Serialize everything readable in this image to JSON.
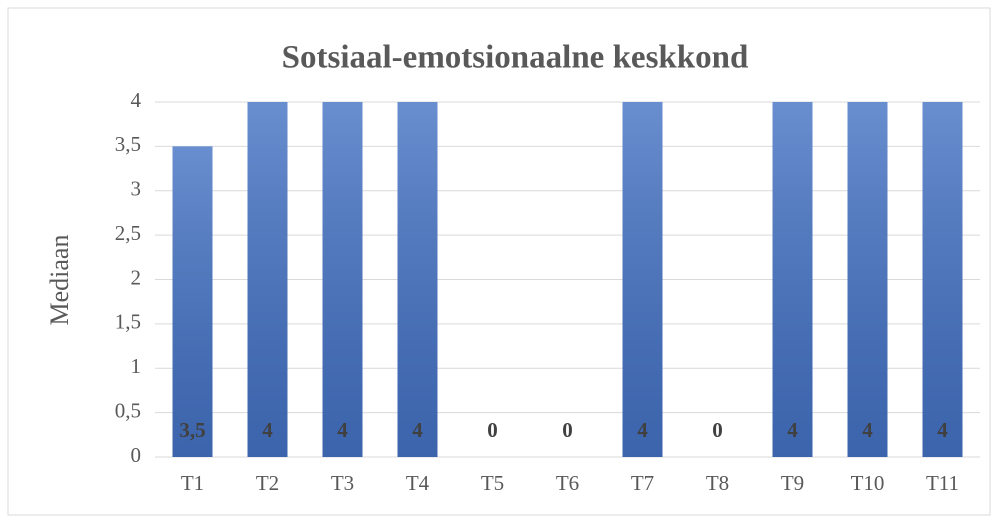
{
  "chart_data": {
    "type": "bar",
    "title": "Sotsiaal-emotsionaalne keskkond",
    "y_label": "Mediaan",
    "categories": [
      "T1",
      "T2",
      "T3",
      "T4",
      "T5",
      "T6",
      "T7",
      "T8",
      "T9",
      "T10",
      "T11"
    ],
    "values": [
      3.5,
      4,
      4,
      4,
      0,
      0,
      4,
      0,
      4,
      4,
      4
    ],
    "value_labels": [
      "3,5",
      "4",
      "4",
      "4",
      "0",
      "0",
      "4",
      "0",
      "4",
      "4",
      "4"
    ],
    "color": "#4472c4",
    "ylim": [
      0,
      4
    ],
    "yticks": [
      0,
      {
        "value": 0.5,
        "label": "0,5"
      },
      1,
      {
        "value": 1.5,
        "label": "1,5"
      },
      2,
      {
        "value": 2.5,
        "label": "2,5"
      },
      3,
      {
        "value": 3.5,
        "label": "3,5"
      },
      4
    ],
    "grid": true
  }
}
